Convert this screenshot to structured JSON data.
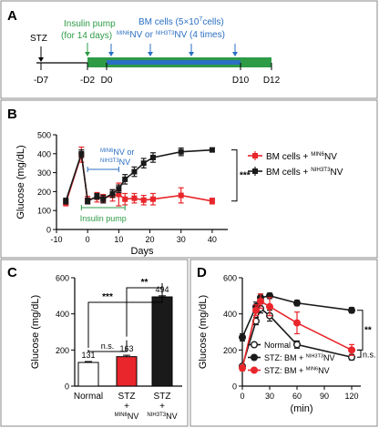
{
  "colors": {
    "red": "#e8262b",
    "black": "#1a1a1a",
    "green": "#2e9b47",
    "blue": "#2a6fc3",
    "frame": "#888888"
  },
  "panels": {
    "A": "A",
    "B": "B",
    "C": "C",
    "D": "D"
  },
  "timeline": {
    "stz": "STZ",
    "insulin_line1": "Insulin pump",
    "insulin_line2": "(for 14 days)",
    "bm_line1_pre": "BM cells (5×10",
    "bm_line1_sup": "7",
    "bm_line1_post": "cells)",
    "bm_line2_a_sup": "MIN6",
    "bm_line2_a": "NV or ",
    "bm_line2_b_sup": "NIH3T3",
    "bm_line2_b": "NV (4 times)",
    "ticks": [
      "-D7",
      "-D2",
      "D0",
      "D10",
      "D12"
    ]
  },
  "chart_data": [
    {
      "panel": "B",
      "type": "line",
      "xlabel": "Days",
      "ylabel": "Glucose (mg/dL)",
      "xlim": [
        -10,
        45
      ],
      "ylim": [
        0,
        500
      ],
      "xticks": [
        -10,
        0,
        10,
        20,
        30,
        40
      ],
      "yticks": [
        0,
        100,
        200,
        300,
        400,
        500
      ],
      "series": [
        {
          "name": "BM cells + MIN6NV",
          "name_base": "BM cells + ",
          "name_sup": "MIN6",
          "name_tail": "NV",
          "color": "red",
          "x": [
            -7,
            -2,
            0,
            3,
            5,
            8,
            10,
            12,
            15,
            18,
            21,
            30,
            40
          ],
          "y": [
            140,
            395,
            155,
            170,
            165,
            180,
            185,
            160,
            165,
            155,
            160,
            180,
            150
          ],
          "err": [
            15,
            40,
            20,
            25,
            20,
            30,
            60,
            30,
            25,
            25,
            30,
            40,
            15
          ]
        },
        {
          "name": "BM cells + NIH3T3NV",
          "name_base": "BM cells + ",
          "name_sup": "NIH3T3",
          "name_tail": "NV",
          "color": "black",
          "x": [
            -7,
            -2,
            0,
            3,
            5,
            8,
            10,
            12,
            15,
            18,
            21,
            30,
            40
          ],
          "y": [
            150,
            400,
            150,
            175,
            160,
            190,
            215,
            265,
            305,
            350,
            380,
            410,
            420
          ],
          "err": [
            15,
            20,
            15,
            15,
            20,
            20,
            20,
            25,
            25,
            25,
            25,
            20,
            10
          ]
        }
      ],
      "annotations": {
        "nv_line1_sup": "MIN6",
        "nv_line1": "NV or",
        "nv_line2_sup": "NIH3T3",
        "nv_line2": "NV",
        "nv_range": [
          0,
          10
        ],
        "insulin_label": "Insulin pump",
        "insulin_range": [
          -2,
          12
        ],
        "significance": "***"
      }
    },
    {
      "panel": "C",
      "type": "bar",
      "ylabel": "Glucose (mg/dL)",
      "ylim": [
        0,
        600
      ],
      "yticks": [
        0,
        200,
        400,
        600
      ],
      "categories": [
        "Normal",
        "STZ + MIN6NV",
        "STZ + NIH3T3NV"
      ],
      "values": [
        131,
        163,
        494
      ],
      "value_labels": [
        "131",
        "163",
        "494"
      ],
      "err": [
        5,
        8,
        6
      ],
      "fills": [
        "#ffffff",
        "red",
        "black"
      ],
      "cat_lines": [
        [
          "Normal"
        ],
        [
          "STZ",
          "+"
        ],
        [
          "STZ",
          "+"
        ]
      ],
      "cat_sub": [
        "",
        "MIN6",
        "NIH3T3"
      ],
      "cat_sub_tail": [
        "",
        "NV",
        "NV"
      ],
      "significance": [
        "***",
        "**",
        "n.s."
      ]
    },
    {
      "panel": "D",
      "type": "line",
      "xlabel": "(min)",
      "ylabel": "Glucose (mg/dL)",
      "xlim": [
        0,
        130
      ],
      "ylim": [
        0,
        600
      ],
      "xticks": [
        0,
        30,
        60,
        90,
        120
      ],
      "yticks": [
        0,
        200,
        400,
        600
      ],
      "series": [
        {
          "name": "Normal",
          "color": "black",
          "marker": "open",
          "x": [
            0,
            15,
            20,
            30,
            60,
            120
          ],
          "y": [
            110,
            360,
            430,
            390,
            230,
            160
          ],
          "err": [
            10,
            20,
            25,
            30,
            20,
            15
          ]
        },
        {
          "name": "STZ: BM + NIH3T3NV",
          "name_base": "STZ: BM + ",
          "name_sup": "NIH3T3",
          "name_tail": "NV",
          "color": "black",
          "marker": "filled",
          "x": [
            0,
            15,
            20,
            30,
            60,
            120
          ],
          "y": [
            270,
            440,
            490,
            500,
            460,
            420
          ],
          "err": [
            20,
            25,
            20,
            15,
            15,
            15
          ]
        },
        {
          "name": "STZ: BM + MIN6NV",
          "name_base": "STZ: BM + ",
          "name_sup": "MIN6",
          "name_tail": "NV",
          "color": "red",
          "marker": "filled",
          "x": [
            0,
            15,
            20,
            30,
            60,
            120
          ],
          "y": [
            100,
            420,
            470,
            440,
            350,
            200
          ],
          "err": [
            15,
            30,
            40,
            50,
            60,
            30
          ]
        }
      ],
      "significance": [
        "**",
        "n.s."
      ]
    }
  ]
}
